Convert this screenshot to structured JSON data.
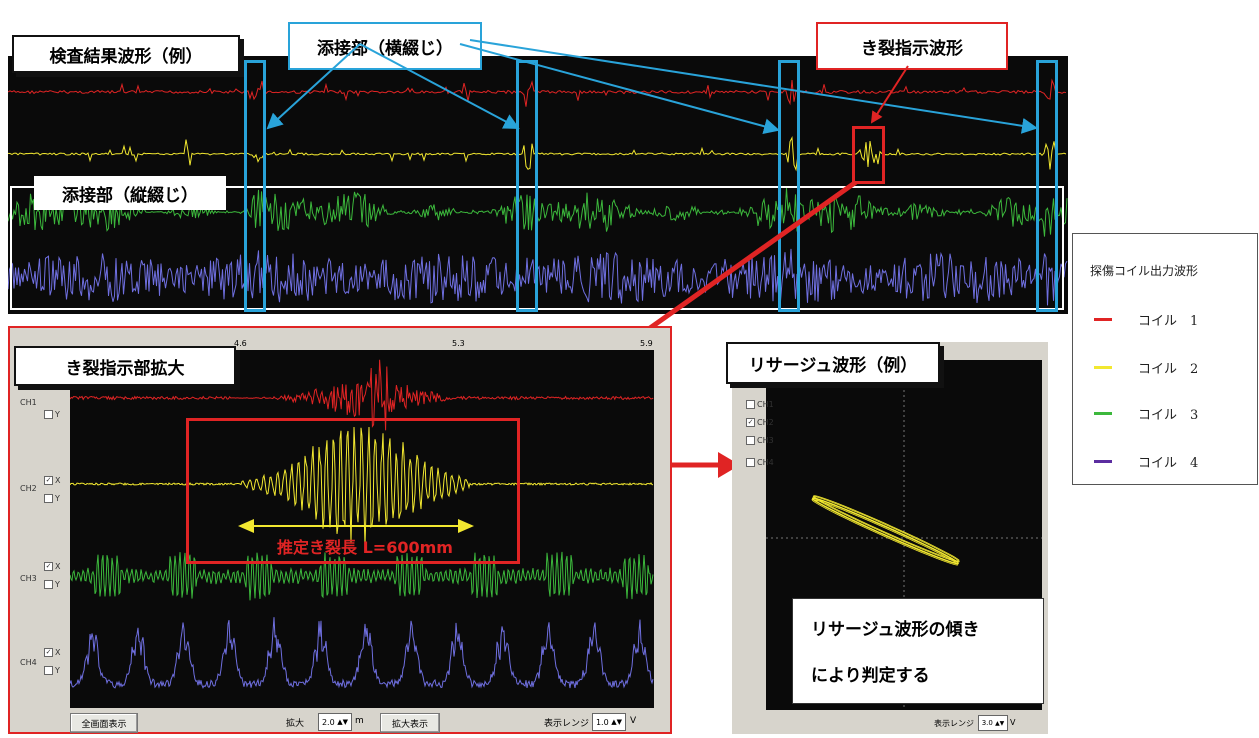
{
  "labels": {
    "result_waveform": "検査結果波形（例）",
    "weld_horizontal": "添接部（横綴じ）",
    "crack_indicator": "き裂指示波形",
    "weld_vertical": "添接部（縦綴じ）",
    "crack_zoom": "き裂指示部拡大",
    "lissajous": "リサージュ波形（例）",
    "estimated_crack": "推定き裂長 L=600mm",
    "judgement_line1": "リサージュ波形の傾き",
    "judgement_line2": "により判定する"
  },
  "legend": {
    "title": "探傷コイル出力波形",
    "items": [
      {
        "label": "コイル　1",
        "color": "#e02424"
      },
      {
        "label": "コイル　2",
        "color": "#f2e830"
      },
      {
        "label": "コイル　3",
        "color": "#3cb83c"
      },
      {
        "label": "コイル　4",
        "color": "#5b2da0"
      }
    ]
  },
  "zoom_panel": {
    "ticks": [
      "4.6",
      "5.3",
      "5.9"
    ],
    "channels": [
      "CH1",
      "CH2",
      "CH3",
      "CH4"
    ],
    "x_label": "X",
    "y_label": "Y",
    "full_view_button": "全画面表示",
    "zoom_label": "拡大",
    "zoom_value": "2.0",
    "zoom_unit": "m",
    "zoom_button": "拡大表示",
    "range_label": "表示レンジ",
    "range_value": "1.0",
    "range_unit": "V"
  },
  "lissajous_panel": {
    "channels": [
      "CH1",
      "CH2",
      "CH3",
      "CH4"
    ],
    "range_label": "表示レンジ",
    "range_value": "3.0",
    "range_unit": "V"
  },
  "colors": {
    "ch1": "#e02424",
    "ch2": "#f2e830",
    "ch3": "#3cb83c",
    "ch4": "#6f6fe0",
    "callout_blue": "#29a3d9",
    "callout_red": "#e02424"
  }
}
